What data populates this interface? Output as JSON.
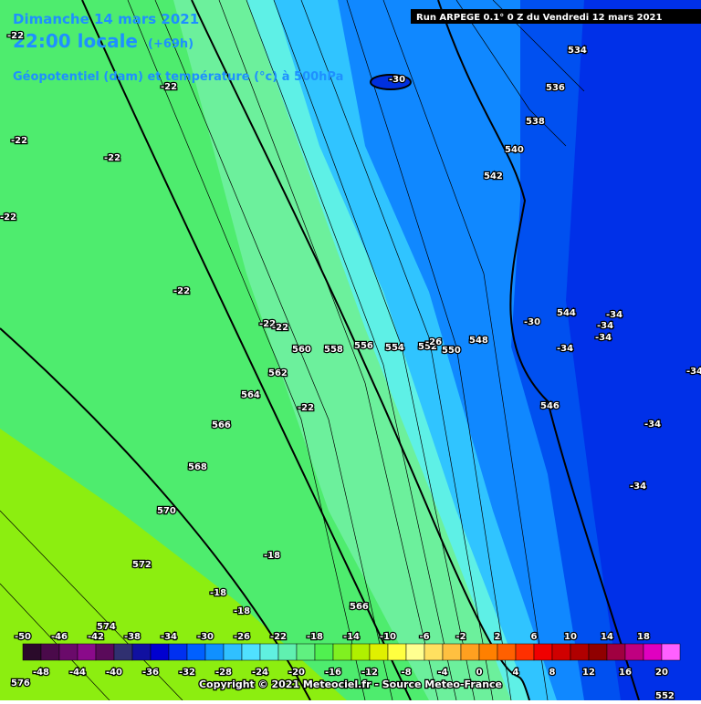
{
  "header": {
    "date": "Dimanche 14 mars 2021",
    "time": "22:00 locale",
    "lead": "(+69h)",
    "field": "Géopotentiel (dam) et température (°c) à 500hPa",
    "run": "Run ARPEGE 0.1° 0 Z du Vendredi 12 mars 2021"
  },
  "copyright": "Copyright © 2021 Meteociel.fr - Source Meteo-France",
  "contour_labels": [
    "534",
    "536",
    "538",
    "540",
    "542",
    "544",
    "546",
    "548",
    "550",
    "552",
    "554",
    "556",
    "558",
    "560",
    "562",
    "564",
    "566",
    "568",
    "570",
    "572",
    "574",
    "576",
    "566",
    "552"
  ],
  "temperature_labels": [
    "-30",
    "-22",
    "-22",
    "-22",
    "-22",
    "-22",
    "-22",
    "-22",
    "-22",
    "-26",
    "-30",
    "-34",
    "-34",
    "-34",
    "-34",
    "-34",
    "-34",
    "-34",
    "-18",
    "-18",
    "-18",
    "-22"
  ],
  "legend": {
    "top_labels": [
      -50,
      -46,
      -42,
      -38,
      -34,
      -30,
      -26,
      -22,
      -18,
      -14,
      -10,
      -6,
      -2,
      2,
      6,
      10,
      14,
      18
    ],
    "bottom_labels": [
      -48,
      -44,
      -40,
      -36,
      -32,
      -28,
      -24,
      -20,
      -16,
      -12,
      -8,
      -4,
      0,
      4,
      8,
      12,
      16,
      20
    ],
    "colors": [
      "#2a0a2a",
      "#4a0a4a",
      "#6a0a6a",
      "#8a0a8a",
      "#5a0a5a",
      "#303070",
      "#1010a0",
      "#0000d0",
      "#0030f0",
      "#0060ff",
      "#1090ff",
      "#30c0ff",
      "#50e0ff",
      "#60f0e0",
      "#60f0b0",
      "#60f080",
      "#50f050",
      "#80f020",
      "#b0f000",
      "#e0f000",
      "#ffff40",
      "#ffff90",
      "#ffe060",
      "#ffc040",
      "#ffa020",
      "#ff8000",
      "#ff6000",
      "#ff3000",
      "#f00000",
      "#d00000",
      "#b00000",
      "#900000",
      "#a00040",
      "#c00080",
      "#e000c0",
      "#ff60ff"
    ]
  }
}
